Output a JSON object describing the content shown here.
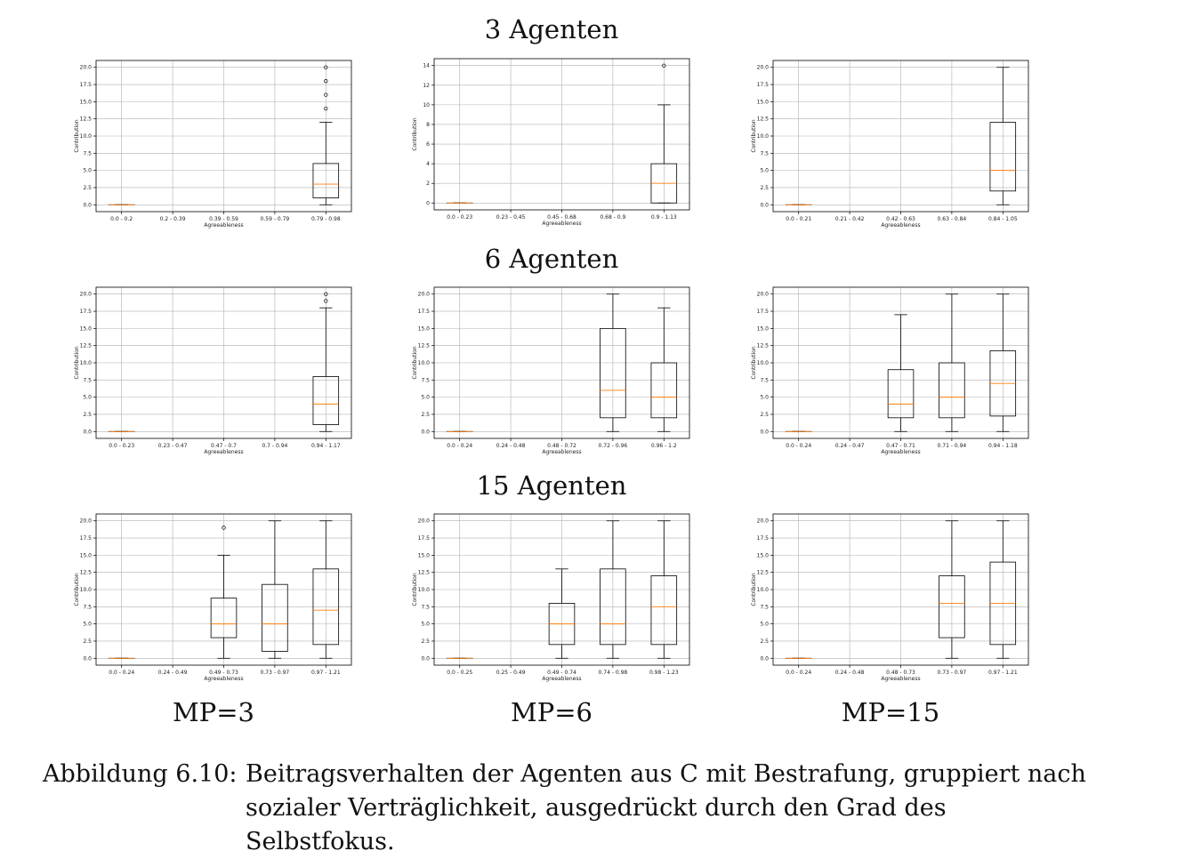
{
  "row_titles": [
    "3 Agenten",
    "6 Agenten",
    "15 Agenten"
  ],
  "mp_labels": [
    "MP=3",
    "MP=6",
    "MP=15"
  ],
  "caption": {
    "label": "Abbildung 6.10:",
    "text": "Beitragsverhalten der Agenten aus C mit Bestrafung, gruppiert nach sozialer Verträglichkeit, ausgedrückt durch den Grad des Selbstfokus."
  },
  "colors": {
    "median": "#ff7f0e",
    "box": "#000000",
    "grid": "#b0b0b0"
  },
  "chart_data": [
    {
      "type": "box",
      "row": "3 Agenten",
      "column": "MP=3",
      "xlabel": "Agreeableness",
      "ylabel": "Contribution",
      "ylim": [
        -1,
        21
      ],
      "yticks": [
        "0.0",
        "2.5",
        "5.0",
        "7.5",
        "10.0",
        "12.5",
        "15.0",
        "17.5",
        "20.0"
      ],
      "categories": [
        "0.0 - 0.2",
        "0.2 - 0.39",
        "0.39 - 0.59",
        "0.59 - 0.79",
        "0.79 - 0.98"
      ],
      "boxes": [
        {
          "min": 0,
          "q1": 0,
          "median": 0,
          "q3": 0,
          "max": 0,
          "outliers": []
        },
        null,
        null,
        null,
        {
          "min": 0,
          "q1": 1,
          "median": 3,
          "q3": 6,
          "max": 12,
          "outliers": [
            14,
            16,
            18,
            20
          ]
        }
      ]
    },
    {
      "type": "box",
      "row": "3 Agenten",
      "column": "MP=6",
      "xlabel": "Agreeableness",
      "ylabel": "Contribution",
      "ylim": [
        -0.7,
        14.7
      ],
      "yticks": [
        "0",
        "2",
        "4",
        "6",
        "8",
        "10",
        "12",
        "14"
      ],
      "categories": [
        "0.0 - 0.23",
        "0.23 - 0.45",
        "0.45 - 0.68",
        "0.68 - 0.9",
        "0.9 - 1.13"
      ],
      "boxes": [
        {
          "min": 0,
          "q1": 0,
          "median": 0,
          "q3": 0,
          "max": 0,
          "outliers": []
        },
        null,
        null,
        null,
        {
          "min": 0,
          "q1": 0,
          "median": 2,
          "q3": 4,
          "max": 10,
          "outliers": [
            14
          ]
        }
      ]
    },
    {
      "type": "box",
      "row": "3 Agenten",
      "column": "MP=15",
      "xlabel": "Agreeableness",
      "ylabel": "Contribution",
      "ylim": [
        -1,
        21
      ],
      "yticks": [
        "0.0",
        "2.5",
        "5.0",
        "7.5",
        "10.0",
        "12.5",
        "15.0",
        "17.5",
        "20.0"
      ],
      "categories": [
        "0.0 - 0.21",
        "0.21 - 0.42",
        "0.42 - 0.63",
        "0.63 - 0.84",
        "0.84 - 1.05"
      ],
      "boxes": [
        {
          "min": 0,
          "q1": 0,
          "median": 0,
          "q3": 0,
          "max": 0,
          "outliers": []
        },
        null,
        null,
        null,
        {
          "min": 0,
          "q1": 2,
          "median": 5,
          "q3": 12,
          "max": 20,
          "outliers": []
        }
      ]
    },
    {
      "type": "box",
      "row": "6 Agenten",
      "column": "MP=3",
      "xlabel": "Agreeableness",
      "ylabel": "Contribution",
      "ylim": [
        -1,
        21
      ],
      "yticks": [
        "0.0",
        "2.5",
        "5.0",
        "7.5",
        "10.0",
        "12.5",
        "15.0",
        "17.5",
        "20.0"
      ],
      "categories": [
        "0.0 - 0.23",
        "0.23 - 0.47",
        "0.47 - 0.7",
        "0.7 - 0.94",
        "0.94 - 1.17"
      ],
      "boxes": [
        {
          "min": 0,
          "q1": 0,
          "median": 0,
          "q3": 0,
          "max": 0,
          "outliers": []
        },
        null,
        null,
        null,
        {
          "min": 0,
          "q1": 1,
          "median": 4,
          "q3": 8,
          "max": 18,
          "outliers": [
            19,
            20
          ]
        }
      ]
    },
    {
      "type": "box",
      "row": "6 Agenten",
      "column": "MP=6",
      "xlabel": "Agreeableness",
      "ylabel": "Contribution",
      "ylim": [
        -1,
        21
      ],
      "yticks": [
        "0.0",
        "2.5",
        "5.0",
        "7.5",
        "10.0",
        "12.5",
        "15.0",
        "17.5",
        "20.0"
      ],
      "categories": [
        "0.0 - 0.24",
        "0.24 - 0.48",
        "0.48 - 0.72",
        "0.72 - 0.96",
        "0.96 - 1.2"
      ],
      "boxes": [
        {
          "min": 0,
          "q1": 0,
          "median": 0,
          "q3": 0,
          "max": 0,
          "outliers": []
        },
        null,
        null,
        {
          "min": 0,
          "q1": 2,
          "median": 6,
          "q3": 15,
          "max": 20,
          "outliers": []
        },
        {
          "min": 0,
          "q1": 2,
          "median": 5,
          "q3": 10,
          "max": 18,
          "outliers": []
        }
      ]
    },
    {
      "type": "box",
      "row": "6 Agenten",
      "column": "MP=15",
      "xlabel": "Agreeableness",
      "ylabel": "Contribution",
      "ylim": [
        -1,
        21
      ],
      "yticks": [
        "0.0",
        "2.5",
        "5.0",
        "7.5",
        "10.0",
        "12.5",
        "15.0",
        "17.5",
        "20.0"
      ],
      "categories": [
        "0.0 - 0.24",
        "0.24 - 0.47",
        "0.47 - 0.71",
        "0.71 - 0.94",
        "0.94 - 1.18"
      ],
      "boxes": [
        {
          "min": 0,
          "q1": 0,
          "median": 0,
          "q3": 0,
          "max": 0,
          "outliers": []
        },
        null,
        {
          "min": 0,
          "q1": 2,
          "median": 4,
          "q3": 9,
          "max": 17,
          "outliers": []
        },
        {
          "min": 0,
          "q1": 2,
          "median": 5,
          "q3": 10,
          "max": 20,
          "outliers": []
        },
        {
          "min": 0,
          "q1": 2.25,
          "median": 7,
          "q3": 11.75,
          "max": 20,
          "outliers": []
        }
      ]
    },
    {
      "type": "box",
      "row": "15 Agenten",
      "column": "MP=3",
      "xlabel": "Agreeableness",
      "ylabel": "Contribution",
      "ylim": [
        -1,
        21
      ],
      "yticks": [
        "0.0",
        "2.5",
        "5.0",
        "7.5",
        "10.0",
        "12.5",
        "15.0",
        "17.5",
        "20.0"
      ],
      "categories": [
        "0.0 - 0.24",
        "0.24 - 0.49",
        "0.49 - 0.73",
        "0.73 - 0.97",
        "0.97 - 1.21"
      ],
      "boxes": [
        {
          "min": 0,
          "q1": 0,
          "median": 0,
          "q3": 0,
          "max": 0,
          "outliers": []
        },
        null,
        {
          "min": 0,
          "q1": 3,
          "median": 5,
          "q3": 8.75,
          "max": 15,
          "outliers": [
            19
          ]
        },
        {
          "min": 0,
          "q1": 1,
          "median": 5,
          "q3": 10.75,
          "max": 20,
          "outliers": []
        },
        {
          "min": 0,
          "q1": 2,
          "median": 7,
          "q3": 13,
          "max": 20,
          "outliers": []
        }
      ]
    },
    {
      "type": "box",
      "row": "15 Agenten",
      "column": "MP=6",
      "xlabel": "Agreeableness",
      "ylabel": "Contribution",
      "ylim": [
        -1,
        21
      ],
      "yticks": [
        "0.0",
        "2.5",
        "5.0",
        "7.5",
        "10.0",
        "12.5",
        "15.0",
        "17.5",
        "20.0"
      ],
      "categories": [
        "0.0 - 0.25",
        "0.25 - 0.49",
        "0.49 - 0.74",
        "0.74 - 0.98",
        "0.98 - 1.23"
      ],
      "boxes": [
        {
          "min": 0,
          "q1": 0,
          "median": 0,
          "q3": 0,
          "max": 0,
          "outliers": []
        },
        null,
        {
          "min": 0,
          "q1": 2,
          "median": 5,
          "q3": 8,
          "max": 13,
          "outliers": []
        },
        {
          "min": 0,
          "q1": 2,
          "median": 5,
          "q3": 13,
          "max": 20,
          "outliers": []
        },
        {
          "min": 0,
          "q1": 2,
          "median": 7.5,
          "q3": 12,
          "max": 20,
          "outliers": []
        }
      ]
    },
    {
      "type": "box",
      "row": "15 Agenten",
      "column": "MP=15",
      "xlabel": "Agreeableness",
      "ylabel": "Contribution",
      "ylim": [
        -1,
        21
      ],
      "yticks": [
        "0.0",
        "2.5",
        "5.0",
        "7.5",
        "10.0",
        "12.5",
        "15.0",
        "17.5",
        "20.0"
      ],
      "categories": [
        "0.0 - 0.24",
        "0.24 - 0.48",
        "0.48 - 0.73",
        "0.73 - 0.97",
        "0.97 - 1.21"
      ],
      "boxes": [
        {
          "min": 0,
          "q1": 0,
          "median": 0,
          "q3": 0,
          "max": 0,
          "outliers": []
        },
        null,
        null,
        {
          "min": 0,
          "q1": 3,
          "median": 8,
          "q3": 12,
          "max": 20,
          "outliers": []
        },
        {
          "min": 0,
          "q1": 2,
          "median": 8,
          "q3": 14,
          "max": 20,
          "outliers": []
        }
      ]
    }
  ]
}
